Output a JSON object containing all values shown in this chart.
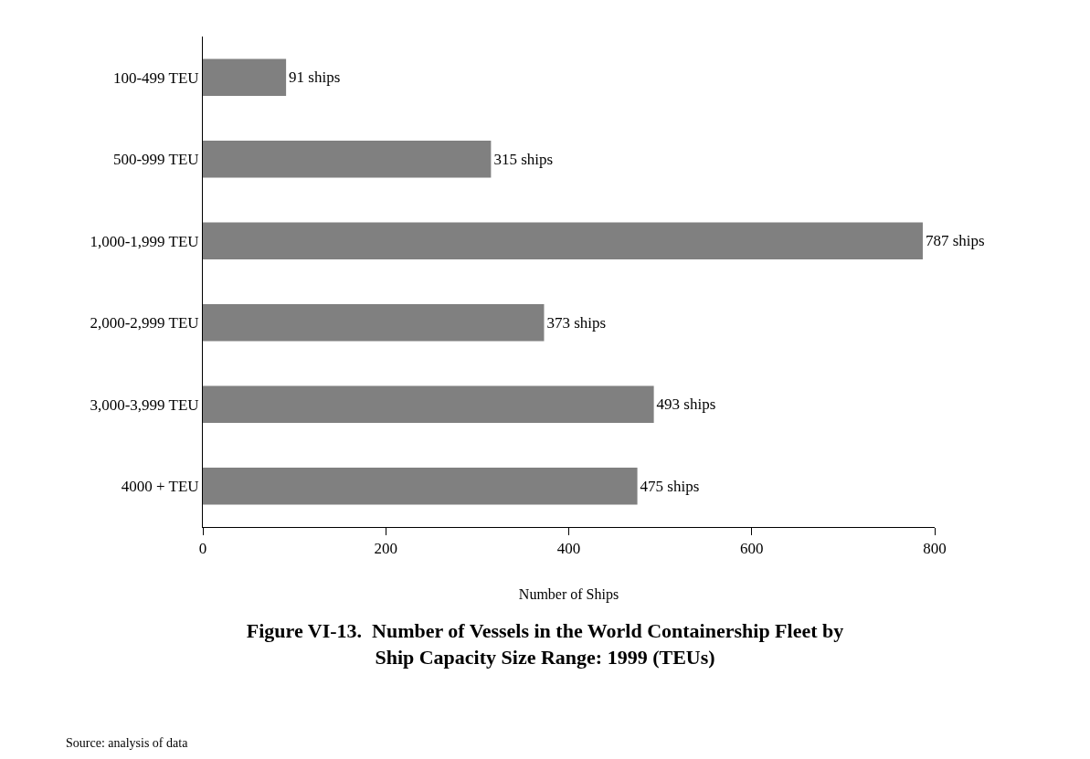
{
  "chart_data": {
    "type": "bar",
    "orientation": "horizontal",
    "title": "Figure VI-13.  Number of Vessels in the World Containership Fleet by\nShip Capacity Size Range: 1999 (TEUs)",
    "xlabel": "Number of Ships",
    "categories": [
      "100-499 TEU",
      "500-999 TEU",
      "1,000-1,999 TEU",
      "2,000-2,999 TEU",
      "3,000-3,999 TEU",
      "4000 + TEU"
    ],
    "values": [
      91,
      315,
      787,
      373,
      493,
      475
    ],
    "value_labels": [
      "91 ships",
      "315 ships",
      "787 ships",
      "373 ships",
      "493 ships",
      "475 ships"
    ],
    "color": "#808080",
    "xlim": [
      0,
      800
    ],
    "xticks": [
      0,
      200,
      400,
      600,
      800
    ],
    "annotations": [
      "Source: analysis of data"
    ]
  }
}
